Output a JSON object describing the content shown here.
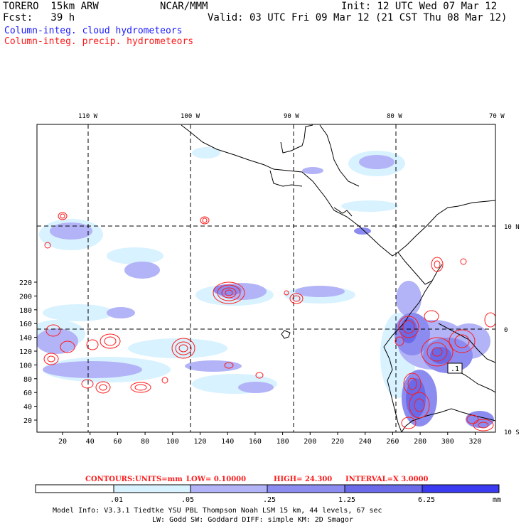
{
  "header": {
    "model": "TORERO  15km ARW",
    "org": "NCAR/MMM",
    "init": "Init: 12 UTC Wed 07 Mar 12",
    "fcst": "Fcst:   39 h",
    "valid": "Valid: 03 UTC Fri 09 Mar 12 (21 CST Thu 08 Mar 12)",
    "field_cloud": "Column-integ. cloud hydrometeors",
    "field_precip": "Column-integ. precip. hydrometeors"
  },
  "axes": {
    "top_labels": [
      "110 W",
      "100 W",
      "90 W",
      "80 W",
      "70 W"
    ],
    "right_labels": [
      "10 N",
      "0",
      "10 S"
    ],
    "left_ticks": [
      "20",
      "40",
      "60",
      "80",
      "100",
      "120",
      "140",
      "160",
      "180",
      "200",
      "220"
    ],
    "bottom_ticks": [
      "20",
      "40",
      "60",
      "80",
      "100",
      "120",
      "140",
      "160",
      "180",
      "200",
      "220",
      "240",
      "260",
      "280",
      "300",
      "320"
    ]
  },
  "contour_info": {
    "contours": "CONTOURS:",
    "units": "UNITS=mm",
    "low": "LOW= 0.10000",
    "high": "HIGH=  24.300",
    "interval": "INTERVAL=X  3.0000"
  },
  "colorbar": {
    "colors": [
      "#ffffff",
      "#d8f2ff",
      "#b3b3f7",
      "#8c8cf0",
      "#6a6ae8",
      "#3a3af0",
      "#1a1aff"
    ],
    "labels": [
      ".01",
      ".05",
      ".25",
      "1.25",
      "6.25"
    ],
    "unit": "mm"
  },
  "map_label": {
    "box": ".1"
  },
  "footer": {
    "line1": "Model Info: V3.3.1    Tiedtke YSU PBL  Thompson    Noah LSM  15 km,   44 levels,   67 sec",
    "line2": "LW: Godd SW: Goddard DIFF: simple KM: 2D Smagor"
  }
}
